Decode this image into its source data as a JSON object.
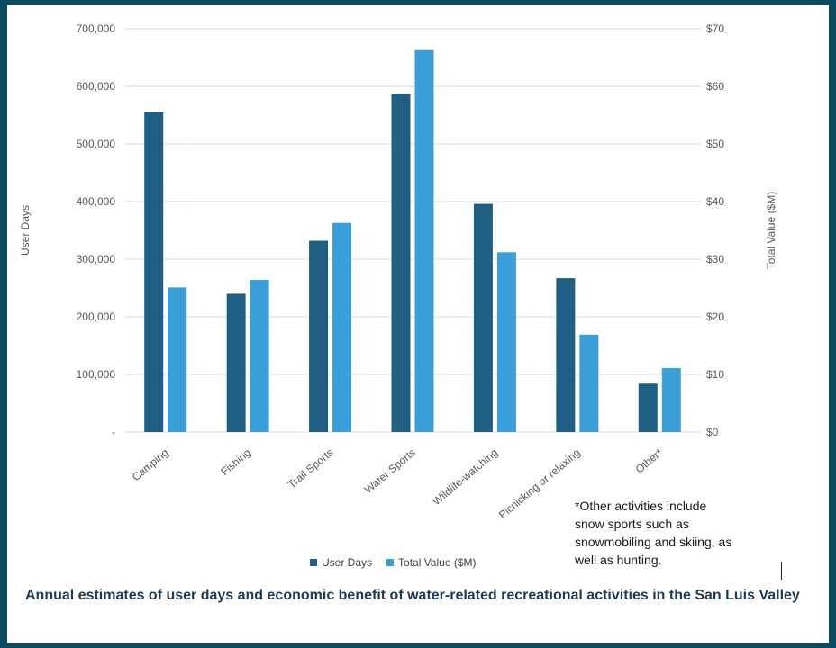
{
  "chart_data": {
    "type": "bar",
    "categories": [
      "Camping",
      "Fishing",
      "Trail Sports",
      "Water Sports",
      "Wildlife-watching",
      "Picnicking or relaxing",
      "Other*"
    ],
    "series": [
      {
        "name": "User Days",
        "axis": "left",
        "color": "#1f5f82",
        "values": [
          555000,
          240000,
          332000,
          587000,
          396000,
          267000,
          84000
        ]
      },
      {
        "name": "Total Value ($M)",
        "axis": "right",
        "color": "#3a9ed8",
        "values": [
          25.1,
          26.4,
          36.3,
          66.3,
          31.2,
          16.9,
          11.1
        ]
      }
    ],
    "ylabel": "User Days",
    "y2label": "Total Value ($M)",
    "ylim": [
      0,
      700000
    ],
    "y2lim": [
      0,
      70
    ],
    "yticks": [
      "-",
      "100,000",
      "200,000",
      "300,000",
      "400,000",
      "500,000",
      "600,000",
      "700,000"
    ],
    "y2ticks": [
      "$0",
      "$10",
      "$20",
      "$30",
      "$40",
      "$50",
      "$60",
      "$70"
    ],
    "grid": true,
    "legend_position": "bottom"
  },
  "footnote": "*Other activities include\nsnow sports such as\nsnowmobiling and skiing, as\nwell as hunting.",
  "caption": "Annual estimates of user days and economic benefit of water-related recreational activities in the San Luis Valley"
}
